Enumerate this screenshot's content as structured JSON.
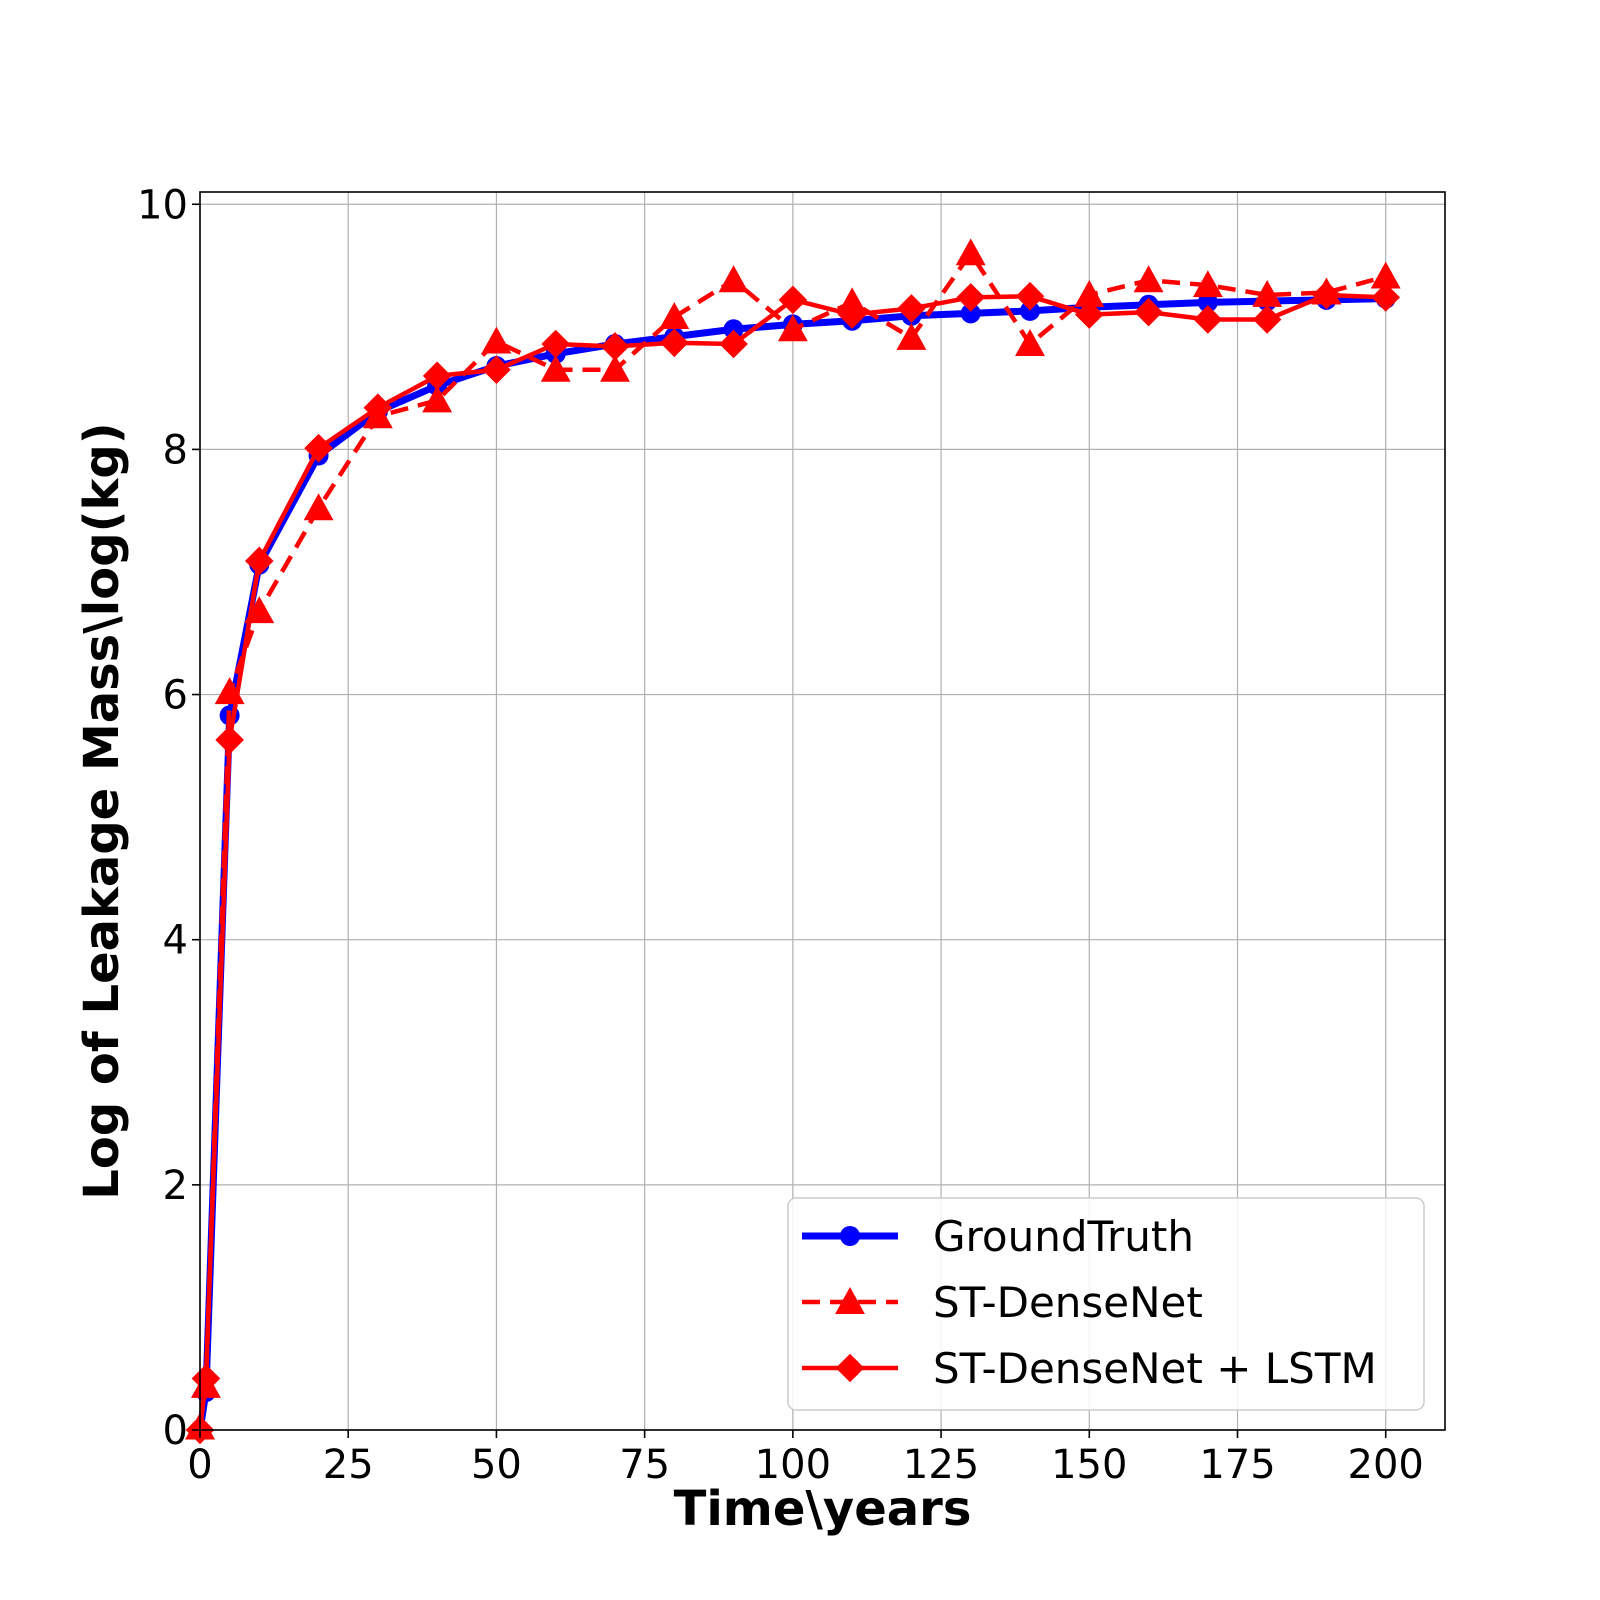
{
  "chart_data": {
    "type": "line",
    "xlabel": "Time\\years",
    "ylabel": "Log of Leakage Mass\\log(kg)",
    "xlim": [
      0,
      210
    ],
    "ylim": [
      0,
      10.1
    ],
    "xticks": [
      0,
      25,
      50,
      75,
      100,
      125,
      150,
      175,
      200
    ],
    "yticks": [
      0,
      2,
      4,
      6,
      8,
      10
    ],
    "grid": true,
    "legend_position": "bottom-right",
    "series": [
      {
        "name": "GroundTruth",
        "color": "#0000ff",
        "line_style": "solid",
        "marker": "circle",
        "x": [
          0,
          1,
          5,
          10,
          20,
          30,
          40,
          50,
          60,
          70,
          80,
          90,
          100,
          110,
          120,
          130,
          140,
          150,
          160,
          170,
          180,
          190,
          200
        ],
        "y": [
          0.0,
          0.31,
          5.83,
          7.06,
          7.95,
          8.31,
          8.52,
          8.68,
          8.78,
          8.86,
          8.92,
          8.98,
          9.02,
          9.05,
          9.09,
          9.11,
          9.13,
          9.16,
          9.18,
          9.2,
          9.21,
          9.22,
          9.23
        ]
      },
      {
        "name": "ST-DenseNet",
        "color": "#ff0000",
        "line_style": "dashed",
        "marker": "triangle",
        "x": [
          0,
          1,
          5,
          10,
          20,
          30,
          40,
          50,
          60,
          70,
          80,
          90,
          100,
          110,
          120,
          130,
          140,
          150,
          160,
          170,
          180,
          190,
          200
        ],
        "y": [
          0.02,
          0.36,
          6.02,
          6.68,
          7.52,
          8.27,
          8.4,
          8.88,
          8.65,
          8.65,
          9.08,
          9.38,
          8.98,
          9.2,
          8.91,
          9.6,
          8.86,
          9.26,
          9.38,
          9.34,
          9.26,
          9.28,
          9.41
        ]
      },
      {
        "name": "ST-DenseNet + LSTM",
        "color": "#ff0000",
        "line_style": "solid",
        "marker": "diamond",
        "x": [
          0,
          1,
          5,
          10,
          20,
          30,
          40,
          50,
          60,
          70,
          80,
          90,
          100,
          110,
          120,
          130,
          140,
          150,
          160,
          170,
          180,
          190,
          200
        ],
        "y": [
          0.0,
          0.42,
          5.63,
          7.09,
          8.01,
          8.34,
          8.6,
          8.65,
          8.86,
          8.84,
          8.87,
          8.86,
          9.22,
          9.1,
          9.15,
          9.24,
          9.25,
          9.1,
          9.12,
          9.06,
          9.06,
          9.26,
          9.24
        ]
      }
    ]
  }
}
